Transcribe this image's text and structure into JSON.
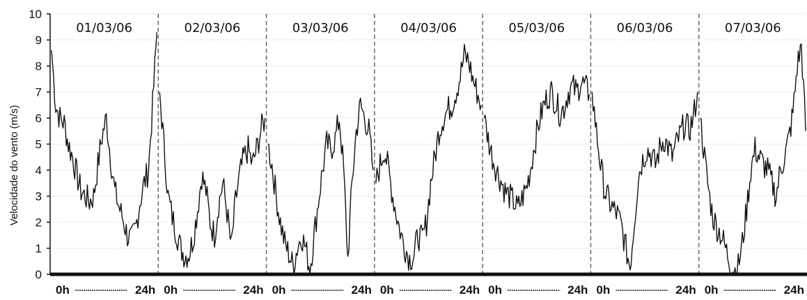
{
  "chart_data": {
    "type": "line",
    "title": "",
    "ylabel": "Velocidade do vento (m/s)",
    "ylim": [
      0,
      10
    ],
    "yticks": [
      "0",
      "1",
      "2",
      "3",
      "4",
      "5",
      "6",
      "7",
      "8",
      "9",
      "10"
    ],
    "grid": "horizontal dotted",
    "days": [
      "01/03/06",
      "02/03/06",
      "03/03/06",
      "04/03/06",
      "05/03/06",
      "06/03/06",
      "07/03/06"
    ],
    "x_labels": [
      {
        "start": "0h",
        "dashes": "---------",
        "end": "24h"
      },
      {
        "start": "0h",
        "dashes": "--------",
        "end": "24h"
      },
      {
        "start": "0h",
        "dashes": "-------",
        "end": "24h"
      },
      {
        "start": "0h",
        "dashes": "-------",
        "end": "24h"
      },
      {
        "start": "0h",
        "dashes": "--------",
        "end": "24h"
      },
      {
        "start": "0h",
        "dashes": "--------",
        "end": "24h"
      },
      {
        "start": "0h",
        "dashes": "--------",
        "end": "24h"
      }
    ],
    "x_unit": "h",
    "hourly_series": [
      [
        8.6,
        6.5,
        6.0,
        5.8,
        5.0,
        4.5,
        3.8,
        3.2,
        3.0,
        2.8,
        3.0,
        4.2,
        5.3,
        6.0,
        4.5,
        3.2,
        2.6,
        2.1,
        1.5,
        1.3,
        1.8,
        2.8,
        3.5,
        4.0,
        6.5,
        9.3
      ],
      [
        7.0,
        5.0,
        3.0,
        2.2,
        1.6,
        1.0,
        0.7,
        0.8,
        1.4,
        2.5,
        3.8,
        3.2,
        2.0,
        1.5,
        2.7,
        3.5,
        2.4,
        1.0,
        2.8,
        3.8,
        4.5,
        4.8,
        4.2,
        4.8,
        5.5,
        6.0
      ],
      [
        5.0,
        4.2,
        3.0,
        2.0,
        1.2,
        0.8,
        0.3,
        1.0,
        1.5,
        1.0,
        0.2,
        1.5,
        2.8,
        4.0,
        5.0,
        4.8,
        5.2,
        6.0,
        4.0,
        0.6,
        3.5,
        5.5,
        6.5,
        6.0,
        5.5,
        4.0
      ],
      [
        3.5,
        4.2,
        4.8,
        4.0,
        3.0,
        2.2,
        1.5,
        1.0,
        0.6,
        0.7,
        1.5,
        1.3,
        2.0,
        3.5,
        4.5,
        5.5,
        6.0,
        6.3,
        6.5,
        7.0,
        7.6,
        8.4,
        8.2,
        7.5,
        7.0,
        6.5
      ],
      [
        6.0,
        5.2,
        4.5,
        4.0,
        3.6,
        3.2,
        3.0,
        2.8,
        2.5,
        2.9,
        3.3,
        4.0,
        5.0,
        5.8,
        6.4,
        6.8,
        7.0,
        6.6,
        6.2,
        6.4,
        7.0,
        7.2,
        7.0,
        7.4,
        7.2,
        6.9
      ],
      [
        7.0,
        5.5,
        4.2,
        3.2,
        2.8,
        2.5,
        2.3,
        1.8,
        1.0,
        0.3,
        2.0,
        3.8,
        4.4,
        4.8,
        4.6,
        4.2,
        4.8,
        5.2,
        4.9,
        4.5,
        5.0,
        5.4,
        5.8,
        5.5,
        6.0,
        7.0
      ],
      [
        6.0,
        4.5,
        3.2,
        2.2,
        1.8,
        1.5,
        1.0,
        0.5,
        0.1,
        0.3,
        1.2,
        2.5,
        4.0,
        4.8,
        4.5,
        4.2,
        4.0,
        3.5,
        3.0,
        4.0,
        4.5,
        5.2,
        6.2,
        8.0,
        8.8,
        5.5
      ]
    ]
  }
}
